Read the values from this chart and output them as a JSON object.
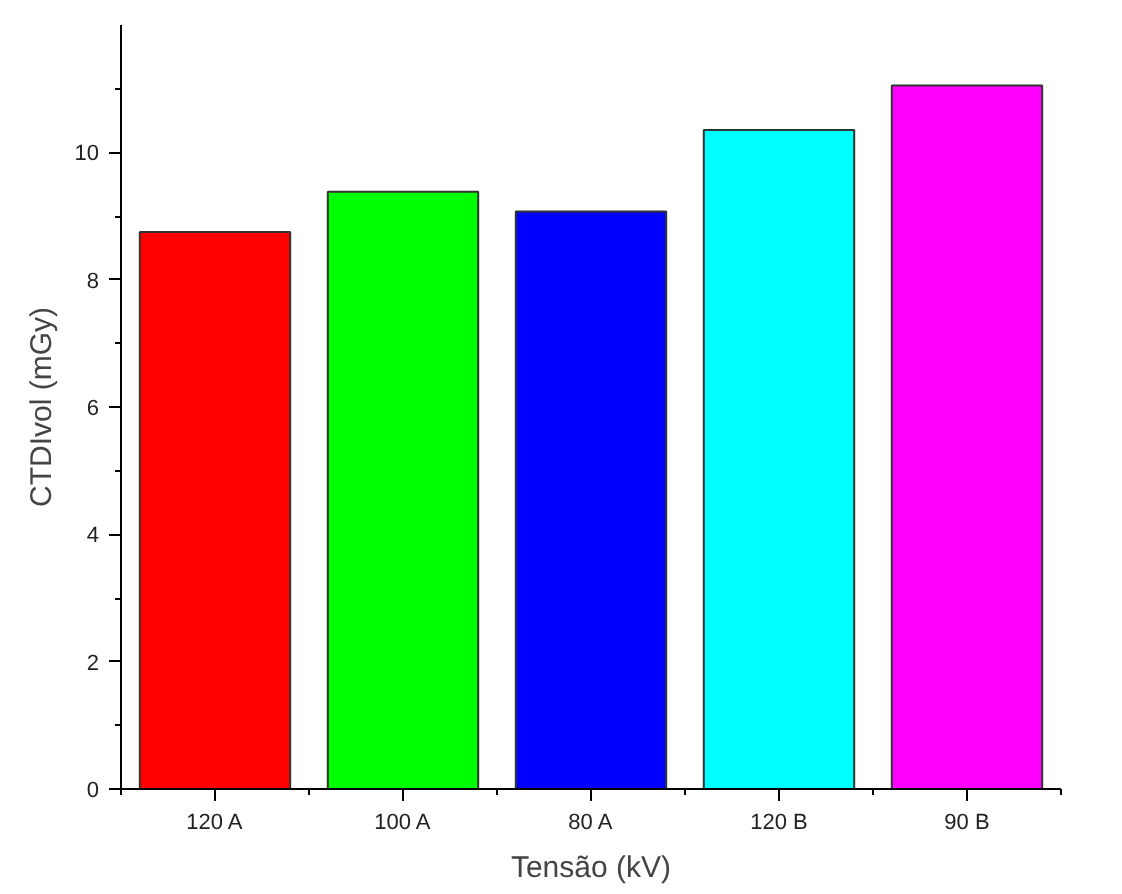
{
  "chart_data": {
    "type": "bar",
    "xlabel": "Tensão (kV)",
    "ylabel": "CTDIvol (mGy)",
    "categories": [
      "120 A",
      "100 A",
      "80 A",
      "120 B",
      "90 B"
    ],
    "values": [
      8.75,
      9.38,
      9.07,
      10.35,
      11.05
    ],
    "colors": [
      "#ff0000",
      "#00ff00",
      "#0000ff",
      "#00ffff",
      "#ff00ff"
    ],
    "ylim": [
      0,
      12
    ],
    "yticks": [
      0,
      {
        "value": 1,
        "label": null
      },
      2,
      {
        "value": 3,
        "label": null
      },
      4,
      {
        "value": 5,
        "label": null
      },
      6,
      {
        "value": 7,
        "label": null
      },
      8,
      {
        "value": 9,
        "label": null
      },
      10,
      {
        "value": 11,
        "label": null
      }
    ],
    "grid": false
  }
}
